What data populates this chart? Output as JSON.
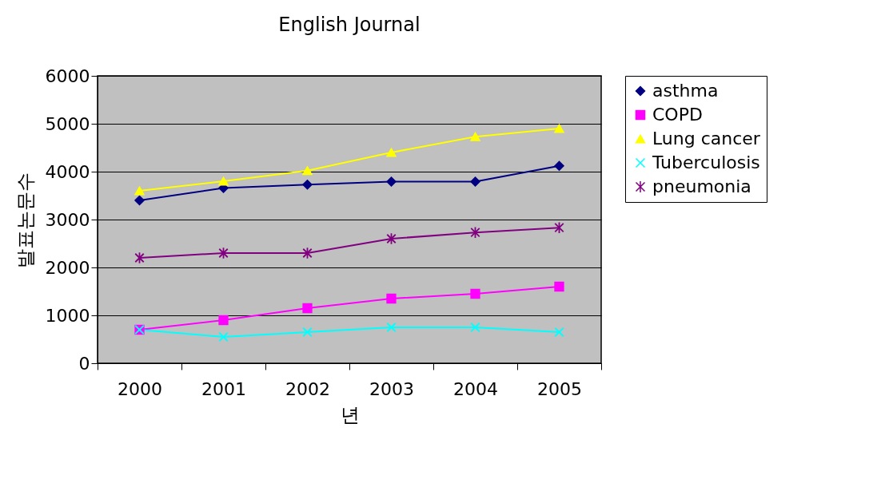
{
  "chart_data": {
    "type": "line",
    "title": "English Journal",
    "xlabel": "년",
    "ylabel": "발표논문수",
    "categories": [
      "2000",
      "2001",
      "2002",
      "2003",
      "2004",
      "2005"
    ],
    "ylim": [
      0,
      6000
    ],
    "yticks": [
      0,
      1000,
      2000,
      3000,
      4000,
      5000,
      6000
    ],
    "grid": "y",
    "legend": "right",
    "line_style": "solid",
    "series": [
      {
        "name": "asthma",
        "color": "#000080",
        "marker": "diamond",
        "values": [
          3400,
          3660,
          3730,
          3790,
          3790,
          4120
        ]
      },
      {
        "name": "COPD",
        "color": "#ff00ff",
        "marker": "square",
        "values": [
          700,
          900,
          1150,
          1350,
          1450,
          1600
        ]
      },
      {
        "name": "Lung cancer",
        "color": "#ffff00",
        "marker": "triangle",
        "values": [
          3600,
          3800,
          4020,
          4400,
          4730,
          4900
        ]
      },
      {
        "name": "Tuberculosis",
        "color": "#00ffff",
        "marker": "cross",
        "values": [
          700,
          550,
          650,
          750,
          750,
          650
        ]
      },
      {
        "name": "pneumonia",
        "color": "#800080",
        "marker": "cross",
        "values": [
          2200,
          2300,
          2300,
          2600,
          2730,
          2830
        ]
      }
    ]
  }
}
